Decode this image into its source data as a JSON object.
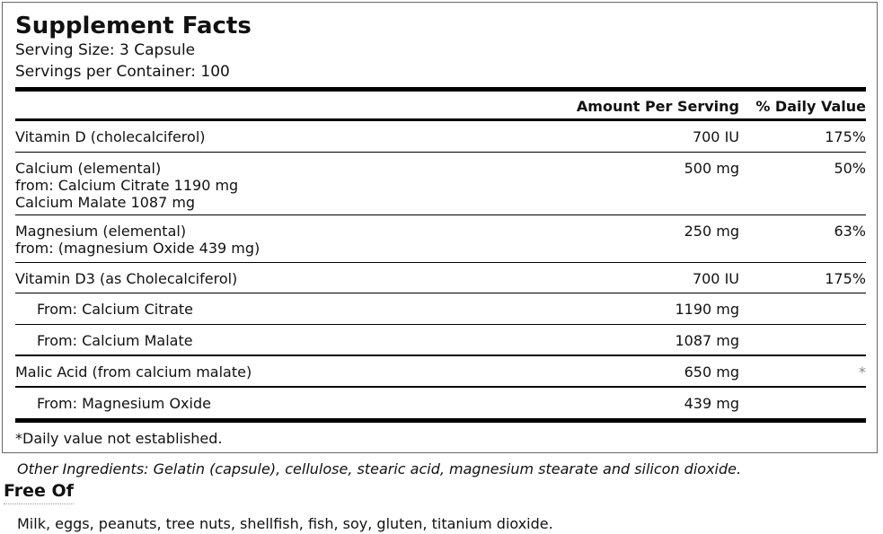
{
  "title": "Supplement Facts",
  "serving_size": "Serving Size: 3 Capsule",
  "servings_per_container": "Servings per Container: 100",
  "header": {
    "amount": "Amount Per Serving",
    "dv": "% Daily Value"
  },
  "rows": [
    {
      "lines": [
        "Vitamin D (cholecalciferol)"
      ],
      "amount": "700 IU",
      "dv": "175%"
    },
    {
      "lines": [
        "Calcium (elemental)",
        "from: Calcium Citrate 1190 mg",
        "Calcium Malate 1087 mg"
      ],
      "amount": "500 mg",
      "dv": "50%"
    },
    {
      "lines": [
        "Magnesium (elemental)",
        "from: (magnesium Oxide 439 mg)"
      ],
      "amount": "250 mg",
      "dv": "63%"
    },
    {
      "lines": [
        "Vitamin D3 (as Cholecalciferol)"
      ],
      "amount": "700 IU",
      "dv": "175%"
    },
    {
      "lines": [
        "From: Calcium Citrate"
      ],
      "amount": "1190 mg",
      "dv": ""
    },
    {
      "lines": [
        "From: Calcium Malate"
      ],
      "amount": "1087 mg",
      "dv": ""
    },
    {
      "lines": [
        "Malic Acid (from calcium malate)"
      ],
      "amount": "650 mg",
      "dv": "*"
    },
    {
      "lines": [
        "From: Magnesium Oxide"
      ],
      "amount": "439 mg",
      "dv": ""
    }
  ],
  "footnote": "*Daily value not established.",
  "other_ingredients": "Other Ingredients: Gelatin (capsule), cellulose, stearic acid, magnesium stearate and silicon dioxide.",
  "free_of_heading": "Free Of",
  "free_of": "Milk, eggs, peanuts, tree nuts, shellfish, fish, soy, gluten, titanium dioxide."
}
